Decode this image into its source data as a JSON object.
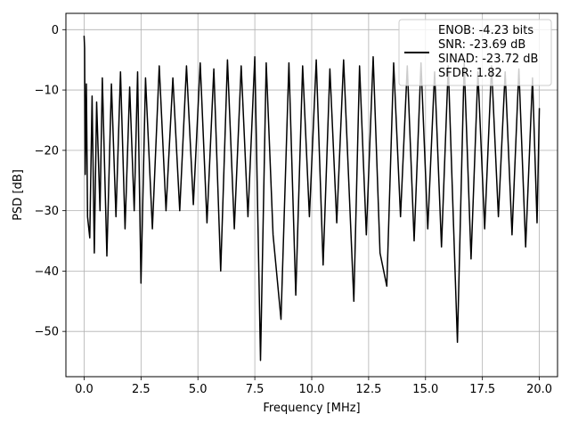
{
  "chart_data": {
    "type": "line",
    "title": "",
    "xlabel": "Frequency [MHz]",
    "ylabel": "PSD [dB]",
    "xlim": [
      -0.8,
      20.8
    ],
    "ylim": [
      -57.5,
      2.7
    ],
    "xticks": [
      0.0,
      2.5,
      5.0,
      7.5,
      10.0,
      12.5,
      15.0,
      17.5,
      20.0
    ],
    "xtick_labels": [
      "0.0",
      "2.5",
      "5.0",
      "7.5",
      "10.0",
      "12.5",
      "15.0",
      "17.5",
      "20.0"
    ],
    "yticks": [
      0,
      -10,
      -20,
      -30,
      -40,
      -50
    ],
    "ytick_labels": [
      "0",
      "−10",
      "−20",
      "−30",
      "−40",
      "−50"
    ],
    "grid": true,
    "legend_placement": "upper right",
    "legend_lines": [
      "ENOB: -4.23 bits",
      "SNR: -23.69 dB",
      "SINAD: -23.72 dB",
      "SFDR: 1.82"
    ],
    "series": [
      {
        "color": "#000000",
        "x": [
          0.0,
          0.02,
          0.05,
          0.1,
          0.15,
          0.25,
          0.35,
          0.45,
          0.55,
          0.7,
          0.8,
          1.0,
          1.2,
          1.4,
          1.6,
          1.8,
          2.0,
          2.2,
          2.35,
          2.5,
          2.7,
          3.0,
          3.3,
          3.6,
          3.9,
          4.2,
          4.5,
          4.8,
          5.1,
          5.4,
          5.7,
          6.0,
          6.3,
          6.6,
          6.9,
          7.2,
          7.5,
          7.75,
          8.0,
          8.3,
          8.65,
          9.0,
          9.3,
          9.6,
          9.9,
          10.2,
          10.5,
          10.8,
          11.1,
          11.4,
          11.85,
          12.1,
          12.4,
          12.7,
          13.0,
          13.3,
          13.6,
          13.9,
          14.2,
          14.5,
          14.8,
          15.1,
          15.4,
          15.7,
          16.0,
          16.4,
          16.7,
          17.0,
          17.3,
          17.6,
          17.9,
          18.2,
          18.5,
          18.8,
          19.1,
          19.4,
          19.7,
          19.9,
          20.0
        ],
        "y": [
          -1.0,
          -3.0,
          -24.0,
          -9.0,
          -31.0,
          -34.5,
          -11.0,
          -37.0,
          -12.0,
          -30.0,
          -8.0,
          -37.5,
          -9.0,
          -31.0,
          -7.0,
          -33.0,
          -9.5,
          -30.0,
          -7.0,
          -42.0,
          -8.0,
          -33.0,
          -6.0,
          -30.0,
          -8.0,
          -30.0,
          -6.0,
          -29.0,
          -5.5,
          -32.0,
          -6.5,
          -40.0,
          -5.0,
          -33.0,
          -6.0,
          -31.0,
          -4.5,
          -54.8,
          -5.5,
          -34.0,
          -48.0,
          -5.5,
          -44.0,
          -6.0,
          -31.0,
          -5.0,
          -39.0,
          -6.5,
          -32.0,
          -5.0,
          -45.0,
          -6.0,
          -34.0,
          -4.5,
          -37.0,
          -42.5,
          -5.5,
          -31.0,
          -6.0,
          -35.0,
          -5.5,
          -33.0,
          -7.0,
          -36.0,
          -6.0,
          -51.8,
          -5.5,
          -38.0,
          -7.0,
          -33.0,
          -6.0,
          -31.0,
          -7.0,
          -34.0,
          -6.5,
          -36.0,
          -8.0,
          -32.0,
          -13.0
        ]
      }
    ]
  }
}
